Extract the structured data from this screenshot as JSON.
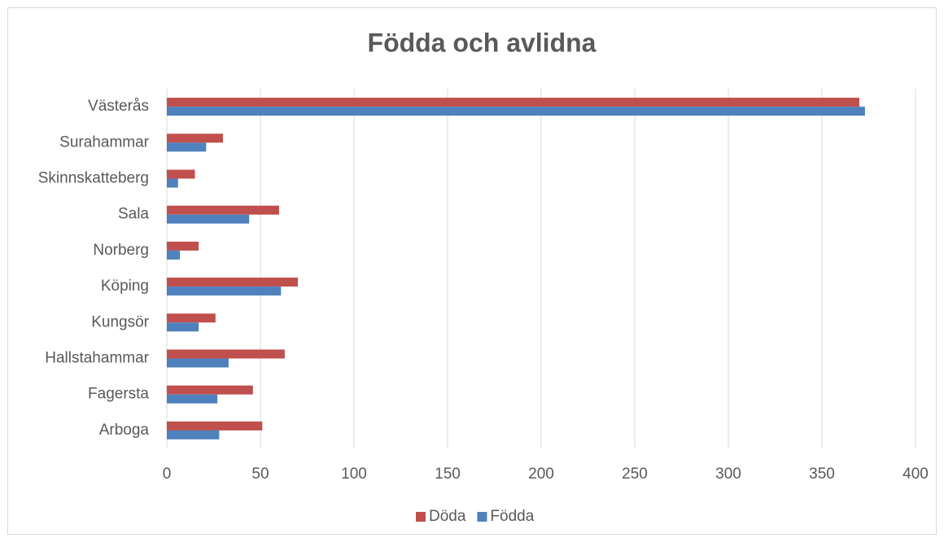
{
  "chart_data": {
    "type": "hbar",
    "title": "Födda och avlidna",
    "categories": [
      "Arboga",
      "Fagersta",
      "Hallstahammar",
      "Kungsör",
      "Köping",
      "Norberg",
      "Sala",
      "Skinnskatteberg",
      "Surahammar",
      "Västerås"
    ],
    "series": [
      {
        "name": "Döda",
        "color": "#c0504d",
        "values": [
          51,
          46,
          63,
          26,
          70,
          17,
          60,
          15,
          30,
          370
        ]
      },
      {
        "name": "Födda",
        "color": "#4f81bd",
        "values": [
          28,
          27,
          33,
          17,
          61,
          7,
          44,
          6,
          21,
          373
        ]
      }
    ],
    "xlim": [
      0,
      400
    ],
    "xticks": [
      0,
      50,
      100,
      150,
      200,
      250,
      300,
      350,
      400
    ],
    "grid": true,
    "legend": "bottom"
  }
}
